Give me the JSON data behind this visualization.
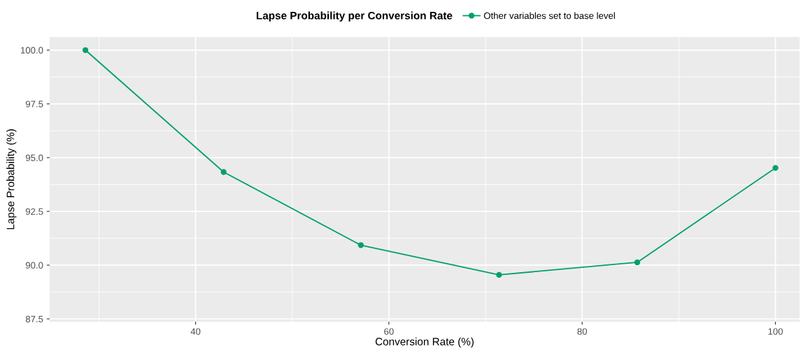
{
  "chart_data": {
    "type": "line",
    "title": "Lapse Probability per Conversion Rate",
    "xlabel": "Conversion Rate (%)",
    "ylabel": "Lapse Probability (%)",
    "x": [
      28.6,
      42.9,
      57.1,
      71.4,
      85.7,
      100
    ],
    "series": [
      {
        "name": "Other variables set to base level",
        "color": "#00a070",
        "values": [
          100.0,
          94.33,
          90.93,
          89.55,
          90.13,
          94.52
        ]
      }
    ],
    "xlim": [
      24.9,
      102.5
    ],
    "xticks": [
      40,
      60,
      80,
      100
    ],
    "ylim": [
      87.37,
      100.61
    ],
    "yticks": [
      {
        "value": 87.5,
        "label": "87.5"
      },
      {
        "value": 90,
        "label": "90.0"
      },
      {
        "value": 92.5,
        "label": "92.5"
      },
      {
        "value": 95,
        "label": "95.0"
      },
      {
        "value": 97.5,
        "label": "97.5"
      },
      {
        "value": 100,
        "label": "100.0"
      }
    ],
    "grid": true,
    "legend": "top",
    "marker": "circle",
    "line_style": "solid"
  }
}
